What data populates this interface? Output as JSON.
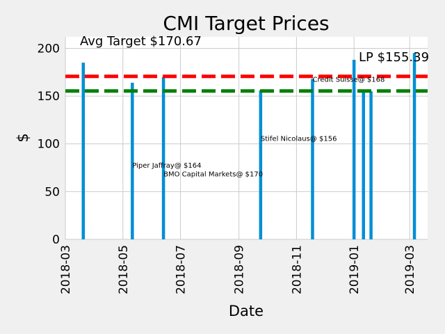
{
  "chart_data": {
    "type": "bar",
    "title": "CMI Target Prices",
    "xlabel": "Date",
    "ylabel": "$",
    "ylim": [
      0,
      212
    ],
    "yticks": [
      0,
      50,
      100,
      150,
      200
    ],
    "xlim": [
      "2018-03-01",
      "2019-03-20"
    ],
    "xticks": [
      "2018-03",
      "2018-05",
      "2018-07",
      "2018-09",
      "2018-11",
      "2019-01",
      "2019-03"
    ],
    "grid": true,
    "bar_color": "#008fd5",
    "bars": [
      {
        "date": "2018-03-20",
        "value": 185
      },
      {
        "date": "2018-05-11",
        "value": 164
      },
      {
        "date": "2018-06-13",
        "value": 170
      },
      {
        "date": "2018-09-24",
        "value": 156
      },
      {
        "date": "2018-11-18",
        "value": 168
      },
      {
        "date": "2019-01-01",
        "value": 188
      },
      {
        "date": "2019-01-11",
        "value": 155
      },
      {
        "date": "2019-01-19",
        "value": 155
      },
      {
        "date": "2019-03-06",
        "value": 195
      }
    ],
    "reference_lines": [
      {
        "value": 170.67,
        "color": "#ff0000",
        "text": "Avg Target $170.67"
      },
      {
        "value": 155.39,
        "color": "#008000",
        "text": "LP $155.39"
      }
    ],
    "annotations": [
      {
        "text": "Credit Suisse@ $168",
        "date": "2018-11-18",
        "value": 168
      },
      {
        "text": "Stifel Nicolaus@ $156",
        "date": "2018-09-24",
        "value": 106
      },
      {
        "text": "Piper Jaffray@ $164",
        "date": "2018-05-11",
        "value": 78
      },
      {
        "text": "BMO Capital Markets@ $170",
        "date": "2018-06-13",
        "value": 69
      }
    ]
  }
}
